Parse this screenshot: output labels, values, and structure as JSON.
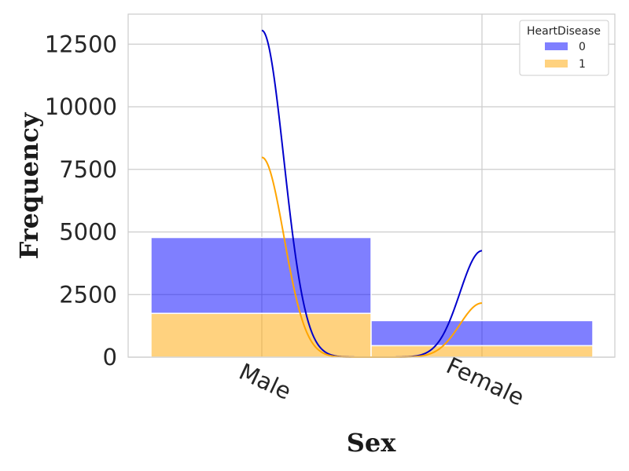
{
  "chart_data": {
    "type": "bar",
    "stacked": true,
    "categories": [
      "Male",
      "Female"
    ],
    "series": [
      {
        "name": "0",
        "values": [
          3030,
          1000
        ],
        "color": "#0000ff",
        "opacity": 0.5
      },
      {
        "name": "1",
        "values": [
          1750,
          460
        ],
        "color": "#ffa500",
        "opacity": 0.5
      }
    ],
    "kde": [
      {
        "series": "0",
        "color": "#0000cc",
        "values": [
          13050,
          4250
        ]
      },
      {
        "series": "1",
        "color": "#ffa500",
        "values": [
          7980,
          2160
        ]
      }
    ],
    "xlabel": "Sex",
    "ylabel": "Frequency",
    "ylim": [
      0,
      13700
    ],
    "yticks": [
      0,
      2500,
      5000,
      7500,
      10000,
      12500
    ],
    "grid": true,
    "legend": {
      "title": "HeartDisease",
      "position": "top-right",
      "entries": [
        "0",
        "1"
      ]
    }
  }
}
